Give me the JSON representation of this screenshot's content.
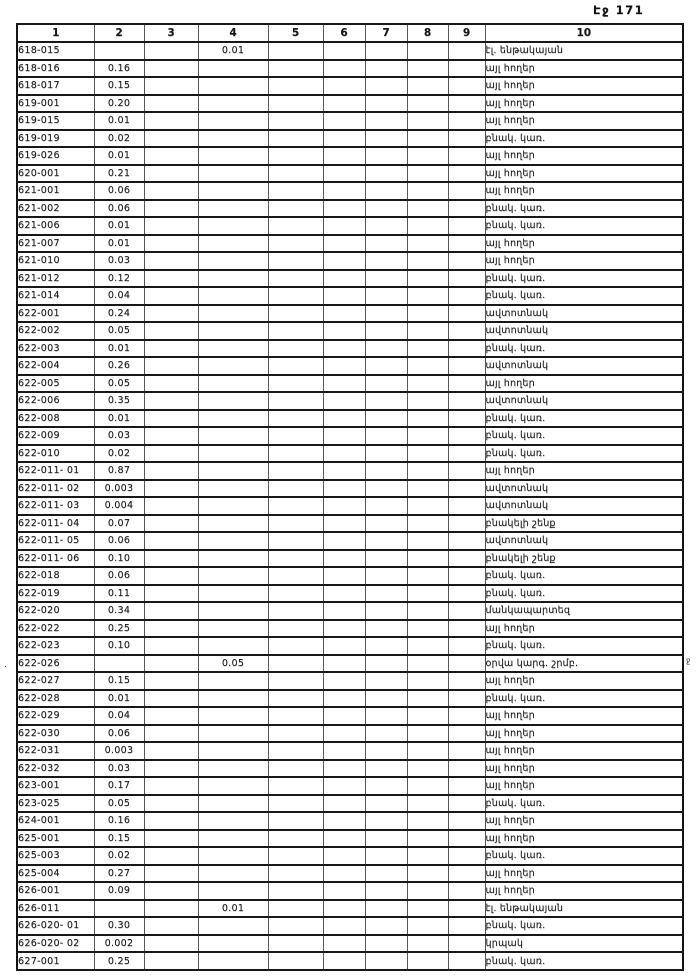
{
  "page": {
    "header_label": "Էջ 171"
  },
  "table": {
    "column_headers": [
      "1",
      "2",
      "3",
      "4",
      "5",
      "6",
      "7",
      "8",
      "9",
      "10"
    ],
    "rows": [
      {
        "code": "618-015",
        "col2": "",
        "col4": "0.01",
        "land_use": "էլ. ենթակայան"
      },
      {
        "code": "618-016",
        "col2": "0.16",
        "col4": "",
        "land_use": "այլ հողեր"
      },
      {
        "code": "618-017",
        "col2": "0.15",
        "col4": "",
        "land_use": "այլ հողեր"
      },
      {
        "code": "619-001",
        "col2": "0.20",
        "col4": "",
        "land_use": "այլ հողեր"
      },
      {
        "code": "619-015",
        "col2": "0.01",
        "col4": "",
        "land_use": "այլ հողեր"
      },
      {
        "code": "619-019",
        "col2": "0.02",
        "col4": "",
        "land_use": "բնակ. կառ."
      },
      {
        "code": "619-026",
        "col2": "0.01",
        "col4": "",
        "land_use": "այլ հողեր"
      },
      {
        "code": "620-001",
        "col2": "0.21",
        "col4": "",
        "land_use": "այլ հողեր"
      },
      {
        "code": "621-001",
        "col2": "0.06",
        "col4": "",
        "land_use": "այլ հողեր"
      },
      {
        "code": "621-002",
        "col2": "0.06",
        "col4": "",
        "land_use": "բնակ. կառ."
      },
      {
        "code": "621-006",
        "col2": "0.01",
        "col4": "",
        "land_use": "բնակ. կառ."
      },
      {
        "code": "621-007",
        "col2": "0.01",
        "col4": "",
        "land_use": "այլ հողեր"
      },
      {
        "code": "621-010",
        "col2": "0.03",
        "col4": "",
        "land_use": "այլ հողեր"
      },
      {
        "code": "621-012",
        "col2": "0.12",
        "col4": "",
        "land_use": "բնակ. կառ."
      },
      {
        "code": "621-014",
        "col2": "0.04",
        "col4": "",
        "land_use": "բնակ. կառ."
      },
      {
        "code": "622-001",
        "col2": "0.24",
        "col4": "",
        "land_use": "ավտոտնակ"
      },
      {
        "code": "622-002",
        "col2": "0.05",
        "col4": "",
        "land_use": "ավտոտնակ"
      },
      {
        "code": "622-003",
        "col2": "0.01",
        "col4": "",
        "land_use": "բնակ. կառ."
      },
      {
        "code": "622-004",
        "col2": "0.26",
        "col4": "",
        "land_use": "ավտոտնակ"
      },
      {
        "code": "622-005",
        "col2": "0.05",
        "col4": "",
        "land_use": "այլ հողեր"
      },
      {
        "code": "622-006",
        "col2": "0.35",
        "col4": "",
        "land_use": "ավտոտնակ"
      },
      {
        "code": "622-008",
        "col2": "0.01",
        "col4": "",
        "land_use": "բնակ. կառ."
      },
      {
        "code": "622-009",
        "col2": "0.03",
        "col4": "",
        "land_use": "բնակ. կառ."
      },
      {
        "code": "622-010",
        "col2": "0.02",
        "col4": "",
        "land_use": "բնակ. կառ."
      },
      {
        "code": "622-011- 01",
        "col2": "0.87",
        "col4": "",
        "land_use": "այլ հողեր"
      },
      {
        "code": "622-011- 02",
        "col2": "0.003",
        "col4": "",
        "land_use": "ավտոտնակ"
      },
      {
        "code": "622-011- 03",
        "col2": "0.004",
        "col4": "",
        "land_use": "ավտոտնակ"
      },
      {
        "code": "622-011- 04",
        "col2": "0.07",
        "col4": "",
        "land_use": "բնակելի շենք"
      },
      {
        "code": "622-011- 05",
        "col2": "0.06",
        "col4": "",
        "land_use": "ավտոտնակ"
      },
      {
        "code": "622-011- 06",
        "col2": "0.10",
        "col4": "",
        "land_use": "բնակելի շենք"
      },
      {
        "code": "622-018",
        "col2": "0.06",
        "col4": "",
        "land_use": "բնակ. կառ."
      },
      {
        "code": "622-019",
        "col2": "0.11",
        "col4": "",
        "land_use": "բնակ. կառ."
      },
      {
        "code": "622-020",
        "col2": "0.34",
        "col4": "",
        "land_use": "մանկապարտեզ"
      },
      {
        "code": "622-022",
        "col2": "0.25",
        "col4": "",
        "land_use": "այլ հողեր"
      },
      {
        "code": "622-023",
        "col2": "0.10",
        "col4": "",
        "land_use": "բնակ. կառ."
      },
      {
        "code": "622-026",
        "col2": "",
        "col4": "0.05",
        "land_use": "օրվա կարգ. շրմբ."
      },
      {
        "code": "622-027",
        "col2": "0.15",
        "col4": "",
        "land_use": "այլ հողեր"
      },
      {
        "code": "622-028",
        "col2": "0.01",
        "col4": "",
        "land_use": "բնակ. կառ."
      },
      {
        "code": "622-029",
        "col2": "0.04",
        "col4": "",
        "land_use": "այլ հողեր"
      },
      {
        "code": "622-030",
        "col2": "0.06",
        "col4": "",
        "land_use": "այլ հողեր"
      },
      {
        "code": "622-031",
        "col2": "0.003",
        "col4": "",
        "land_use": "այլ հողեր"
      },
      {
        "code": "622-032",
        "col2": "0.03",
        "col4": "",
        "land_use": "այլ հողեր"
      },
      {
        "code": "623-001",
        "col2": "0.17",
        "col4": "",
        "land_use": "այլ հողեր"
      },
      {
        "code": "623-025",
        "col2": "0.05",
        "col4": "",
        "land_use": "բնակ. կառ."
      },
      {
        "code": "624-001",
        "col2": "0.16",
        "col4": "",
        "land_use": "այլ հողեր"
      },
      {
        "code": "625-001",
        "col2": "0.15",
        "col4": "",
        "land_use": "այլ հողեր"
      },
      {
        "code": "625-003",
        "col2": "0.02",
        "col4": "",
        "land_use": "բնակ. կառ."
      },
      {
        "code": "625-004",
        "col2": "0.27",
        "col4": "",
        "land_use": "այլ հողեր"
      },
      {
        "code": "626-001",
        "col2": "0.09",
        "col4": "",
        "land_use": "այլ հողեր"
      },
      {
        "code": "626-011",
        "col2": "",
        "col4": "0.01",
        "land_use": "էլ. ենթակայան"
      },
      {
        "code": "626-020- 01",
        "col2": "0.30",
        "col4": "",
        "land_use": "բնակ. կառ."
      },
      {
        "code": "626-020- 02",
        "col2": "0.002",
        "col4": "",
        "land_use": "կրպակ"
      },
      {
        "code": "627-001",
        "col2": "0.25",
        "col4": "",
        "land_use": "բնակ. կառ."
      }
    ]
  },
  "artifacts": {
    "right_edge_mark": "ջ",
    "left_edge_dot": "."
  }
}
